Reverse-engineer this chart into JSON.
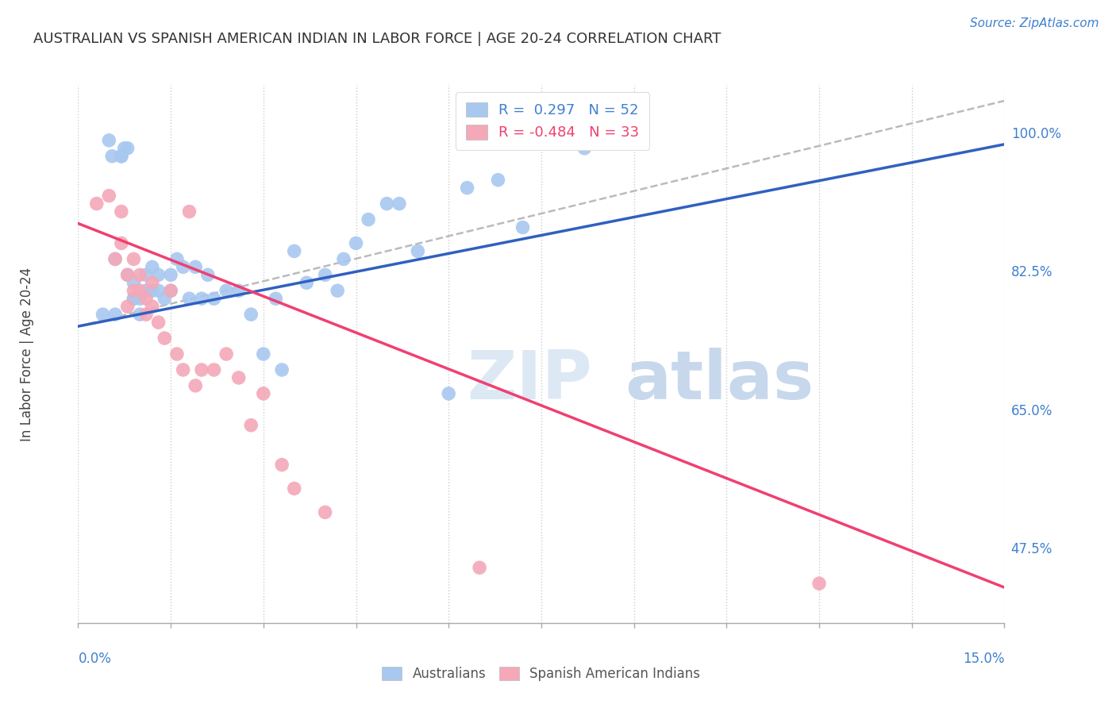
{
  "title": "AUSTRALIAN VS SPANISH AMERICAN INDIAN IN LABOR FORCE | AGE 20-24 CORRELATION CHART",
  "source": "Source: ZipAtlas.com",
  "ylabel": "In Labor Force | Age 20-24",
  "ytick_labels": [
    "100.0%",
    "82.5%",
    "65.0%",
    "47.5%"
  ],
  "ytick_values": [
    1.0,
    0.825,
    0.65,
    0.475
  ],
  "xlim": [
    0.0,
    0.15
  ],
  "ylim": [
    0.38,
    1.06
  ],
  "watermark_zip": "ZIP",
  "watermark_atlas": "atlas",
  "legend_r_blue": "R =  0.297",
  "legend_n_blue": "N = 52",
  "legend_r_pink": "R = -0.484",
  "legend_n_pink": "N = 33",
  "blue_color": "#a8c8f0",
  "pink_color": "#f4a8b8",
  "blue_line_color": "#3060c0",
  "pink_line_color": "#f04070",
  "dashed_line_color": "#bbbbbb",
  "blue_points_x": [
    0.004,
    0.005,
    0.0055,
    0.006,
    0.006,
    0.007,
    0.007,
    0.0075,
    0.008,
    0.008,
    0.009,
    0.009,
    0.009,
    0.01,
    0.01,
    0.011,
    0.011,
    0.012,
    0.012,
    0.013,
    0.013,
    0.014,
    0.015,
    0.015,
    0.016,
    0.017,
    0.018,
    0.019,
    0.02,
    0.021,
    0.022,
    0.024,
    0.026,
    0.028,
    0.03,
    0.032,
    0.033,
    0.035,
    0.037,
    0.04,
    0.042,
    0.043,
    0.045,
    0.047,
    0.05,
    0.052,
    0.055,
    0.06,
    0.063,
    0.068,
    0.072,
    0.082
  ],
  "blue_points_y": [
    0.77,
    0.99,
    0.97,
    0.84,
    0.77,
    0.97,
    0.97,
    0.98,
    0.98,
    0.82,
    0.79,
    0.81,
    0.79,
    0.79,
    0.77,
    0.82,
    0.8,
    0.8,
    0.83,
    0.82,
    0.8,
    0.79,
    0.8,
    0.82,
    0.84,
    0.83,
    0.79,
    0.83,
    0.79,
    0.82,
    0.79,
    0.8,
    0.8,
    0.77,
    0.72,
    0.79,
    0.7,
    0.85,
    0.81,
    0.82,
    0.8,
    0.84,
    0.86,
    0.89,
    0.91,
    0.91,
    0.85,
    0.67,
    0.93,
    0.94,
    0.88,
    0.98
  ],
  "pink_points_x": [
    0.003,
    0.005,
    0.006,
    0.007,
    0.007,
    0.008,
    0.008,
    0.009,
    0.009,
    0.01,
    0.01,
    0.011,
    0.011,
    0.012,
    0.012,
    0.013,
    0.014,
    0.015,
    0.016,
    0.017,
    0.018,
    0.019,
    0.02,
    0.022,
    0.024,
    0.026,
    0.028,
    0.03,
    0.033,
    0.035,
    0.04,
    0.065,
    0.12
  ],
  "pink_points_y": [
    0.91,
    0.92,
    0.84,
    0.86,
    0.9,
    0.82,
    0.78,
    0.8,
    0.84,
    0.8,
    0.82,
    0.79,
    0.77,
    0.78,
    0.81,
    0.76,
    0.74,
    0.8,
    0.72,
    0.7,
    0.9,
    0.68,
    0.7,
    0.7,
    0.72,
    0.69,
    0.63,
    0.67,
    0.58,
    0.55,
    0.52,
    0.45,
    0.43
  ],
  "blue_trendline_x": [
    0.0,
    0.15
  ],
  "blue_trendline_y": [
    0.755,
    0.985
  ],
  "pink_trendline_x": [
    0.0,
    0.15
  ],
  "pink_trendline_y": [
    0.885,
    0.425
  ],
  "dashed_trendline_x": [
    0.0,
    0.15
  ],
  "dashed_trendline_y": [
    0.755,
    1.04
  ],
  "grid_color": "#cccccc",
  "background_color": "#ffffff",
  "title_fontsize": 13,
  "label_fontsize": 12,
  "tick_fontsize": 12,
  "source_fontsize": 11,
  "legend_fontsize": 13
}
